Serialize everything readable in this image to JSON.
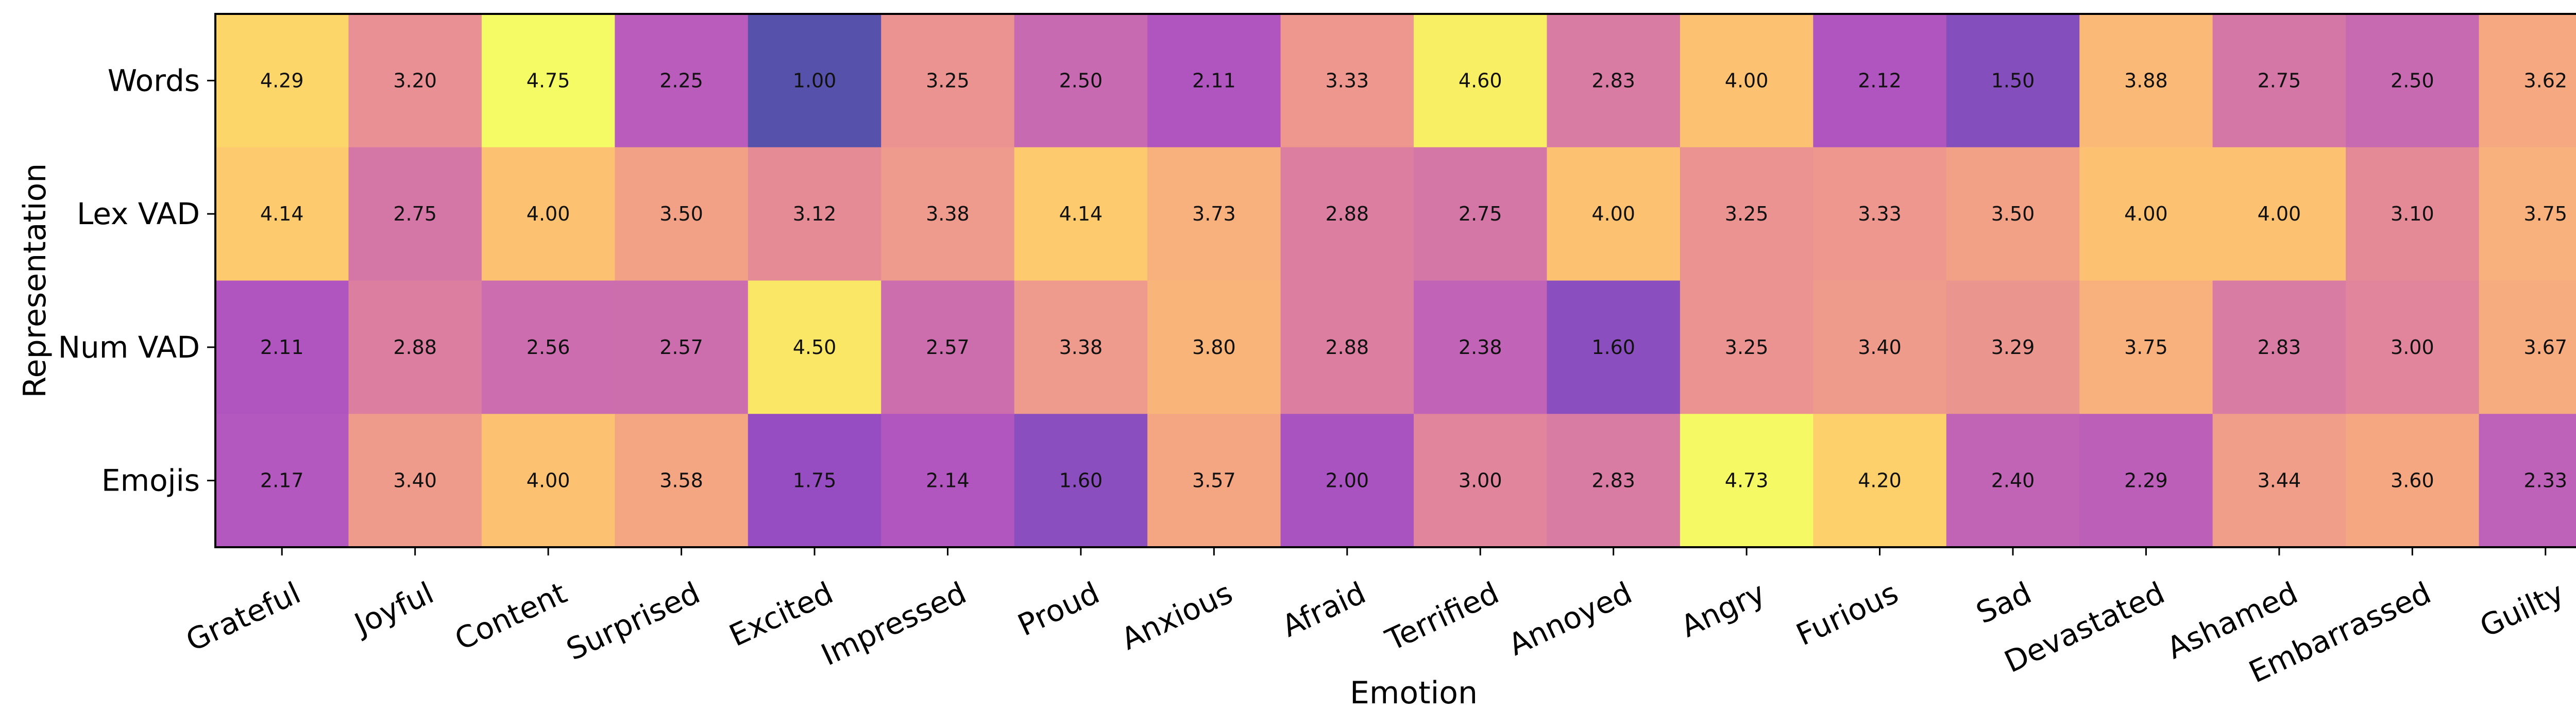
{
  "chart_data": {
    "type": "heatmap",
    "xlabel": "Emotion",
    "ylabel": "Representation",
    "x_categories": [
      "Grateful",
      "Joyful",
      "Content",
      "Surprised",
      "Excited",
      "Impressed",
      "Proud",
      "Anxious",
      "Afraid",
      "Terrified",
      "Annoyed",
      "Angry",
      "Furious",
      "Sad",
      "Devastated",
      "Ashamed",
      "Embarrassed",
      "Guilty"
    ],
    "y_categories": [
      "Words",
      "Lex VAD",
      "Num VAD",
      "Emojis"
    ],
    "values": [
      [
        4.29,
        3.2,
        4.75,
        2.25,
        1.0,
        3.25,
        2.5,
        2.11,
        3.33,
        4.6,
        2.83,
        4.0,
        2.12,
        1.5,
        3.88,
        2.75,
        2.5,
        3.62
      ],
      [
        4.14,
        2.75,
        4.0,
        3.5,
        3.12,
        3.38,
        4.14,
        3.73,
        2.88,
        2.75,
        4.0,
        3.25,
        3.33,
        3.5,
        4.0,
        4.0,
        3.1,
        3.75
      ],
      [
        2.11,
        2.88,
        2.56,
        2.57,
        4.5,
        2.57,
        3.38,
        3.8,
        2.88,
        2.38,
        1.6,
        3.25,
        3.4,
        3.29,
        3.75,
        2.83,
        3.0,
        3.67
      ],
      [
        2.17,
        3.4,
        4.0,
        3.58,
        1.75,
        2.14,
        1.6,
        3.57,
        2.0,
        3.0,
        2.83,
        4.73,
        4.2,
        2.4,
        2.29,
        3.44,
        3.6,
        2.33
      ]
    ],
    "value_format": "2 decimals",
    "colormap": "plasma",
    "colormap_alpha": 0.7,
    "value_range": [
      1.0,
      4.75
    ],
    "colorbar": false,
    "grid": false
  }
}
